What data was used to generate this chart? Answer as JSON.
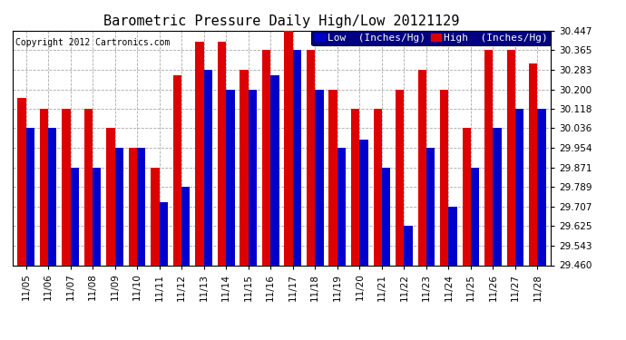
{
  "title": "Barometric Pressure Daily High/Low 20121129",
  "copyright": "Copyright 2012 Cartronics.com",
  "legend_low": "Low  (Inches/Hg)",
  "legend_high": "High  (Inches/Hg)",
  "dates": [
    "11/05",
    "11/06",
    "11/07",
    "11/08",
    "11/09",
    "11/10",
    "11/11",
    "11/12",
    "11/13",
    "11/14",
    "11/15",
    "11/16",
    "11/17",
    "11/18",
    "11/19",
    "11/20",
    "11/21",
    "11/22",
    "11/23",
    "11/24",
    "11/25",
    "11/26",
    "11/27",
    "11/28"
  ],
  "high": [
    30.165,
    30.118,
    30.118,
    30.118,
    30.036,
    29.954,
    29.871,
    30.26,
    30.4,
    30.4,
    30.283,
    30.365,
    30.447,
    30.365,
    30.2,
    30.118,
    30.118,
    30.2,
    30.283,
    30.2,
    30.036,
    30.365,
    30.365,
    30.31
  ],
  "low": [
    30.036,
    30.036,
    29.871,
    29.871,
    29.954,
    29.954,
    29.725,
    29.789,
    30.283,
    30.2,
    30.2,
    30.26,
    30.365,
    30.2,
    29.954,
    29.99,
    29.871,
    29.625,
    29.954,
    29.707,
    29.871,
    30.036,
    30.118,
    30.118
  ],
  "ylim_min": 29.46,
  "ylim_max": 30.447,
  "yticks": [
    29.46,
    29.543,
    29.625,
    29.707,
    29.789,
    29.871,
    29.954,
    30.036,
    30.118,
    30.2,
    30.283,
    30.365,
    30.447
  ],
  "bar_width": 0.38,
  "low_color": "#0000cc",
  "high_color": "#dd0000",
  "bg_color": "#ffffff",
  "grid_color": "#aaaaaa",
  "title_fontsize": 11,
  "tick_fontsize": 7.5,
  "legend_fontsize": 8,
  "copyright_fontsize": 7
}
